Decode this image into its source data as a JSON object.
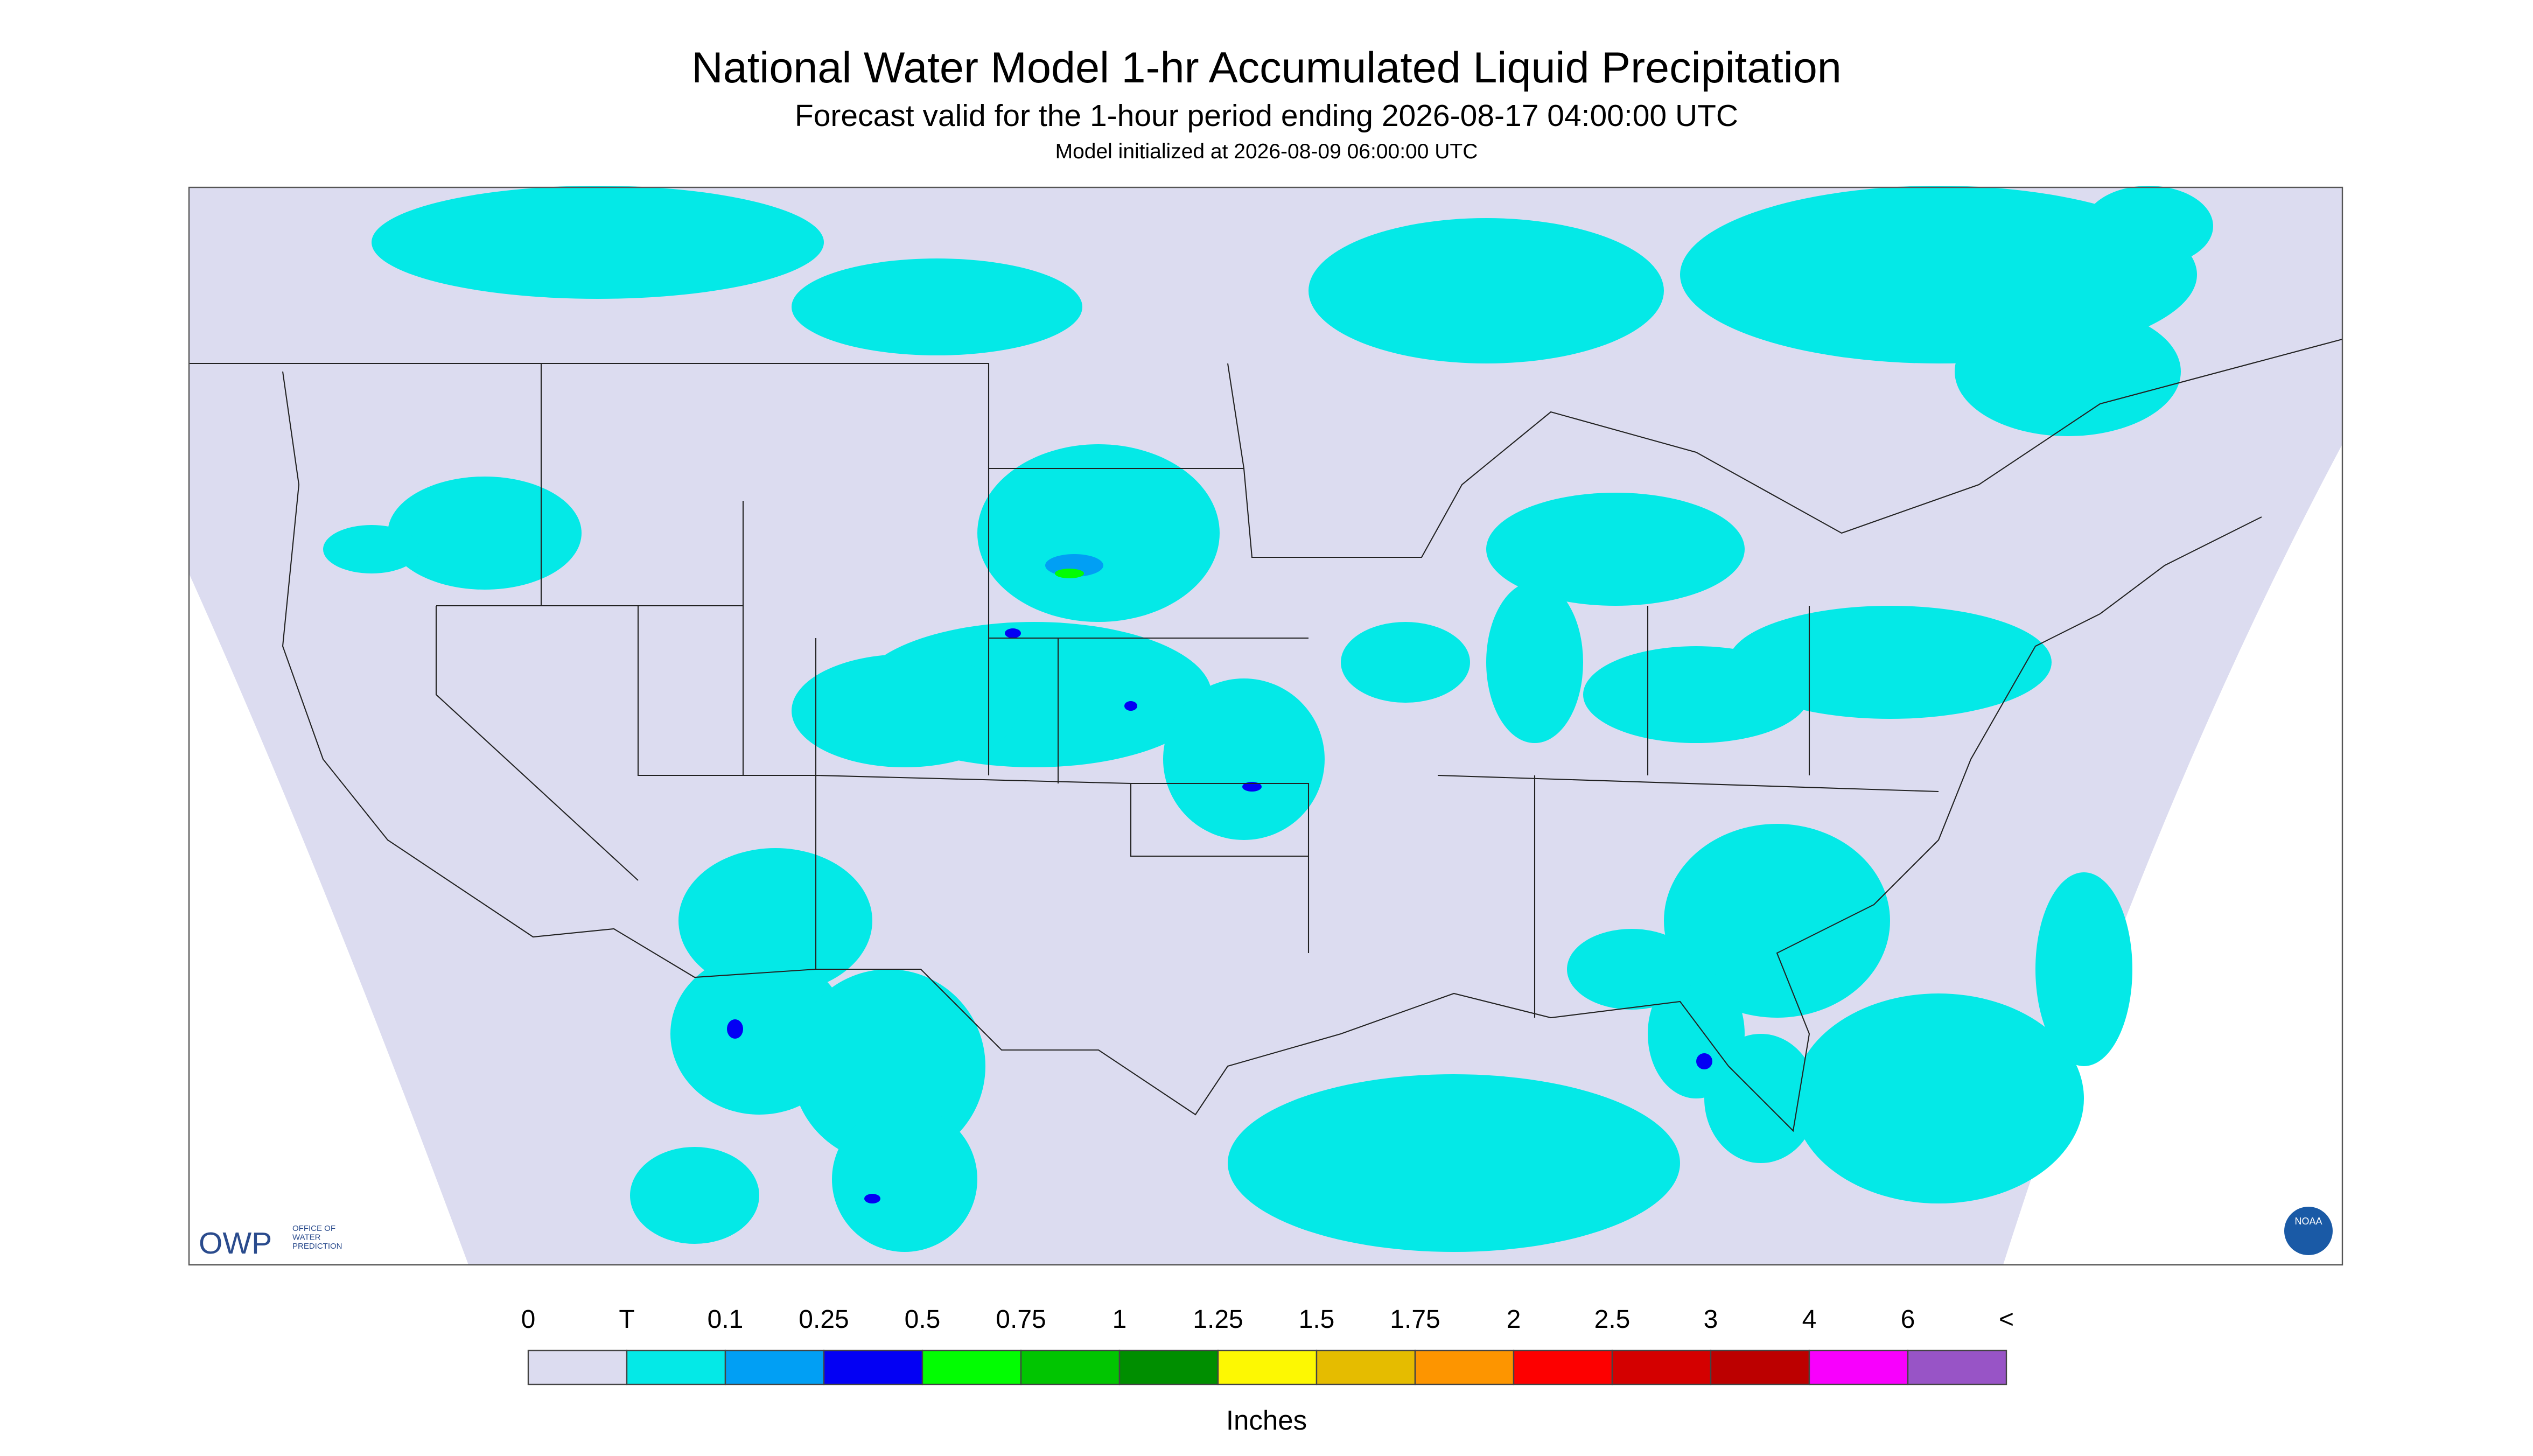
{
  "header": {
    "title": "National Water Model 1-hr Accumulated Liquid Precipitation",
    "subtitle": "Forecast valid for the 1-hour period ending 2026-08-17 04:00:00 UTC",
    "note": "Model initialized at 2026-08-09 06:00:00 UTC"
  },
  "logos": {
    "owp": "OWP",
    "owp_text": [
      "OFFICE OF",
      "WATER",
      "PREDICTION"
    ],
    "noaa": "NOAA"
  },
  "legend": {
    "labels": [
      "0",
      "T",
      "0.1",
      "0.25",
      "0.5",
      "0.75",
      "1",
      "1.25",
      "1.5",
      "1.75",
      "2",
      "2.5",
      "3",
      "4",
      "6",
      "<"
    ],
    "colors": [
      "#dcdcf0",
      "#04e9e7",
      "#019ff4",
      "#0300f4",
      "#02fd02",
      "#01c501",
      "#008e00",
      "#fdf802",
      "#e5bc00",
      "#fd9500",
      "#fd0000",
      "#d40000",
      "#bc0000",
      "#f800fd",
      "#9854c6"
    ],
    "units": "Inches"
  }
}
